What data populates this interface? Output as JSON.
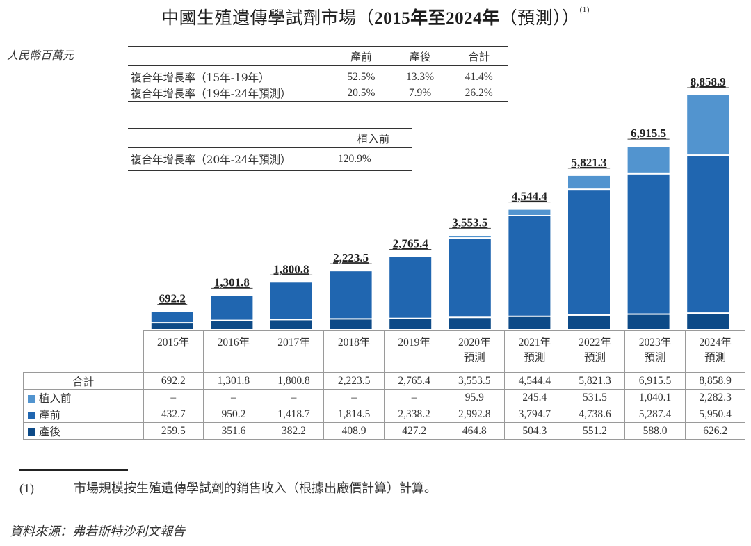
{
  "title": {
    "prefix": "中國生殖遺傳學試劑市場（",
    "years": "2015年至2024年",
    "suffix": "（預測））",
    "note_mark": "(1)"
  },
  "unit": "人民幣百萬元",
  "cagr_table_1": {
    "headers": [
      "產前",
      "產後",
      "合計"
    ],
    "rows": [
      {
        "label": "複合年增長率（15年-19年）",
        "values": [
          "52.5%",
          "13.3%",
          "41.4%"
        ]
      },
      {
        "label": "複合年增長率（19年-24年預測）",
        "values": [
          "20.5%",
          "7.9%",
          "26.2%"
        ]
      }
    ]
  },
  "cagr_table_2": {
    "headers": [
      "植入前"
    ],
    "rows": [
      {
        "label": "複合年增長率（20年-24年預測）",
        "values": [
          "120.9%"
        ]
      }
    ]
  },
  "colors": {
    "pre_implant": "#5294cf",
    "prenatal": "#2066b0",
    "postnatal": "#0d4a87",
    "grid": "#9a9a9a"
  },
  "chart_data": {
    "type": "bar",
    "stacked": true,
    "title": "中國生殖遺傳學試劑市場（2015年至2024年（預測））",
    "ylabel": "人民幣百萬元",
    "categories": [
      "2015年",
      "2016年",
      "2017年",
      "2018年",
      "2019年",
      "2020年預測",
      "2021年預測",
      "2022年預測",
      "2023年預測",
      "2024年預測"
    ],
    "category_lines": [
      [
        "2015年"
      ],
      [
        "2016年"
      ],
      [
        "2017年"
      ],
      [
        "2018年"
      ],
      [
        "2019年"
      ],
      [
        "2020年",
        "預測"
      ],
      [
        "2021年",
        "預測"
      ],
      [
        "2022年",
        "預測"
      ],
      [
        "2023年",
        "預測"
      ],
      [
        "2024年",
        "預測"
      ]
    ],
    "series": [
      {
        "name": "產後",
        "key": "postnatal",
        "values": [
          259.5,
          351.6,
          382.2,
          408.9,
          427.2,
          464.8,
          504.3,
          551.2,
          588.0,
          626.2
        ],
        "labels": [
          "259.5",
          "351.6",
          "382.2",
          "408.9",
          "427.2",
          "464.8",
          "504.3",
          "551.2",
          "588.0",
          "626.2"
        ]
      },
      {
        "name": "產前",
        "key": "prenatal",
        "values": [
          432.7,
          950.2,
          1418.7,
          1814.5,
          2338.2,
          2992.8,
          3794.7,
          4738.6,
          5287.4,
          5950.4
        ],
        "labels": [
          "432.7",
          "950.2",
          "1,418.7",
          "1,814.5",
          "2,338.2",
          "2,992.8",
          "3,794.7",
          "4,738.6",
          "5,287.4",
          "5,950.4"
        ]
      },
      {
        "name": "植入前",
        "key": "pre_implant",
        "values": [
          0,
          0,
          0,
          0,
          0,
          95.9,
          245.4,
          531.5,
          1040.1,
          2282.3
        ],
        "labels": [
          "–",
          "–",
          "–",
          "–",
          "–",
          "95.9",
          "245.4",
          "531.5",
          "1,040.1",
          "2,282.3"
        ]
      }
    ],
    "totals": [
      692.2,
      1301.8,
      1800.8,
      2223.5,
      2765.4,
      3553.5,
      4544.4,
      5821.3,
      6915.5,
      8858.9
    ],
    "total_labels": [
      "692.2",
      "1,301.8",
      "1,800.8",
      "2,223.5",
      "2,765.4",
      "3,553.5",
      "4,544.4",
      "5,821.3",
      "6,915.5",
      "8,858.9"
    ],
    "total_row_label": "合計",
    "ylim": [
      0,
      8858.9
    ],
    "grid": false,
    "legend": "table-left"
  },
  "footnote": {
    "mark": "(1)",
    "text": "市場規模按生殖遺傳學試劑的銷售收入（根據出廠價計算）計算。"
  },
  "source": "資料來源：弗若斯特沙利文報告"
}
